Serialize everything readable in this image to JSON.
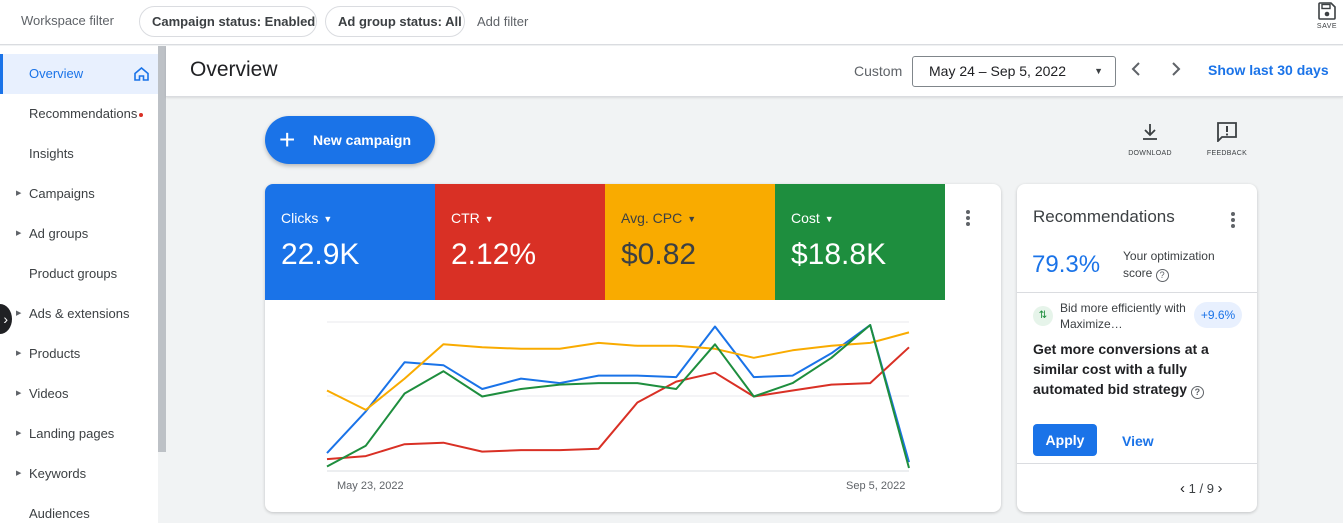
{
  "filterbar": {
    "workspace_label": "Workspace filter",
    "chips": [
      "Campaign status: Enabled",
      "Ad group status: All"
    ],
    "add_filter": "Add filter",
    "save_label": "SAVE"
  },
  "sidebar": {
    "items": [
      {
        "label": "Overview",
        "active": true
      },
      {
        "label": "Recommendations"
      },
      {
        "label": "Insights"
      },
      {
        "label": "Campaigns",
        "expandable": true
      },
      {
        "label": "Ad groups",
        "expandable": true
      },
      {
        "label": "Product groups"
      },
      {
        "label": "Ads & extensions",
        "expandable": true
      },
      {
        "label": "Products",
        "expandable": true
      },
      {
        "label": "Videos",
        "expandable": true
      },
      {
        "label": "Landing pages",
        "expandable": true
      },
      {
        "label": "Keywords",
        "expandable": true
      },
      {
        "label": "Audiences"
      }
    ]
  },
  "header": {
    "title": "Overview",
    "custom_label": "Custom",
    "date_range": "May 24 – Sep 5, 2022",
    "show_last": "Show last 30 days"
  },
  "toolbar": {
    "new_campaign": "New campaign",
    "download": "DOWNLOAD",
    "feedback": "FEEDBACK"
  },
  "metrics": [
    {
      "name": "Clicks",
      "value": "22.9K",
      "color": "#1a73e8"
    },
    {
      "name": "CTR",
      "value": "2.12%",
      "color": "#d93025"
    },
    {
      "name": "Avg. CPC",
      "value": "$0.82",
      "color": "#f9ab00"
    },
    {
      "name": "Cost",
      "value": "$18.8K",
      "color": "#1e8e3e"
    }
  ],
  "chart_data": {
    "type": "line",
    "x_labels": [
      "May 23, 2022",
      "Sep 5, 2022"
    ],
    "grid": true,
    "series": [
      {
        "name": "Clicks",
        "color": "#1a73e8",
        "values": [
          12,
          40,
          73,
          71,
          55,
          62,
          59,
          64,
          64,
          63,
          97,
          63,
          64,
          79,
          98,
          6
        ]
      },
      {
        "name": "CTR",
        "color": "#d93025",
        "values": [
          8,
          10,
          18,
          19,
          13,
          14,
          14,
          15,
          46,
          60,
          66,
          50,
          54,
          58,
          59,
          83
        ]
      },
      {
        "name": "Avg. CPC",
        "color": "#f9ab00",
        "values": [
          54,
          41,
          62,
          85,
          83,
          82,
          82,
          86,
          84,
          84,
          82,
          76,
          81,
          84,
          86,
          93
        ]
      },
      {
        "name": "Cost",
        "color": "#1e8e3e",
        "values": [
          3,
          17,
          52,
          67,
          50,
          55,
          58,
          59,
          59,
          55,
          85,
          50,
          59,
          76,
          98,
          2
        ]
      }
    ]
  },
  "recommendations": {
    "title": "Recommendations",
    "score": "79.3%",
    "score_label": "Your optimization score",
    "item_text": "Bid more efficiently with Maximize…",
    "item_badge": "+9.6%",
    "description": "Get more conversions at a similar cost with a fully automated bid strategy",
    "apply": "Apply",
    "view": "View",
    "pager": "1 / 9"
  }
}
